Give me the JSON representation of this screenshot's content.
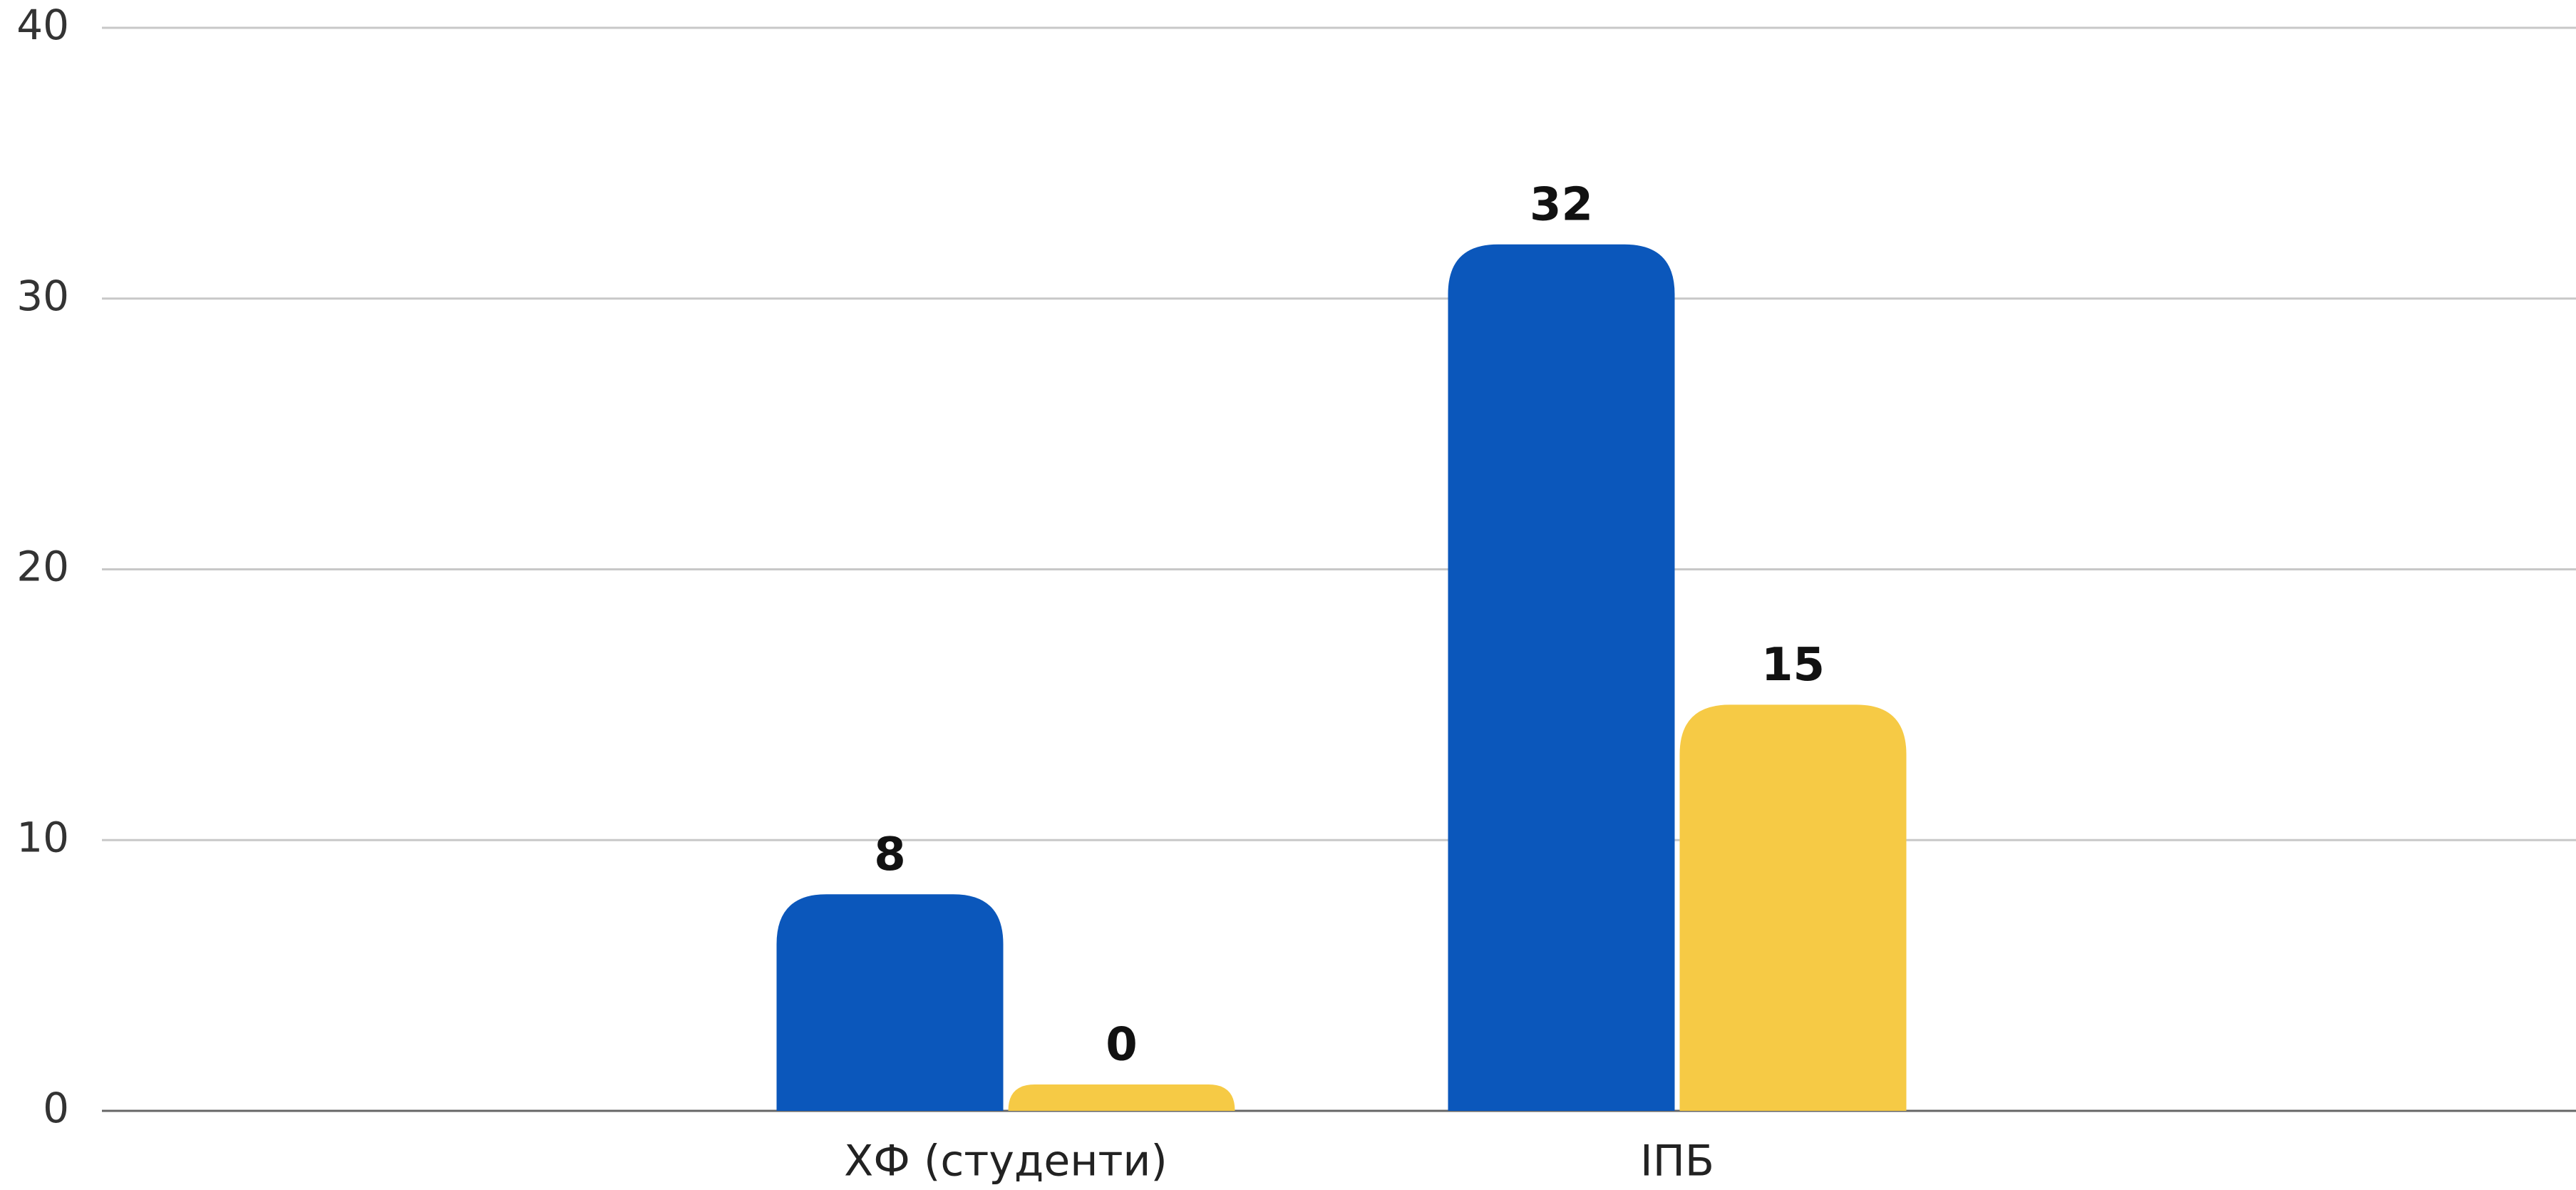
{
  "chart_data": {
    "type": "bar",
    "categories": [
      "ХФ (студенти)",
      "ІПБ"
    ],
    "series": [
      {
        "color": "#0b57bb",
        "values": [
          8,
          32
        ]
      },
      {
        "color": "#f6ca45",
        "values": [
          0,
          15
        ]
      }
    ],
    "ylim": [
      0,
      40
    ],
    "yticks": [
      0,
      10,
      20,
      30,
      40
    ],
    "grid": true
  }
}
